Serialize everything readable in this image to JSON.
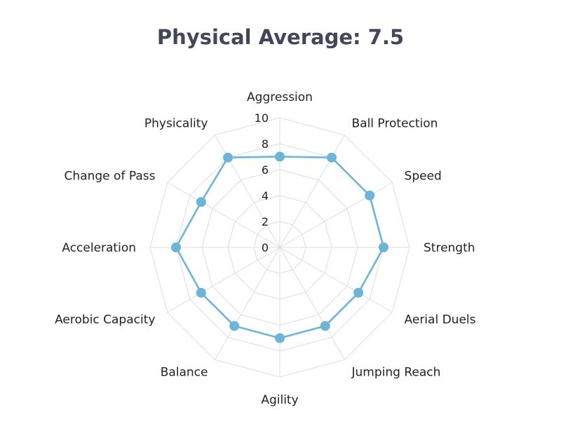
{
  "chart_data": {
    "type": "radar",
    "title": "Physical Average: 7.5",
    "categories": [
      "Aggression",
      "Ball Protection",
      "Speed",
      "Strength",
      "Aerial Duels",
      "Jumping Reach",
      "Agility",
      "Balance",
      "Aerobic Capacity",
      "Acceleration",
      "Change of Pass",
      "Physicality"
    ],
    "series": [
      {
        "values": [
          7,
          8,
          8,
          8,
          7,
          7,
          7,
          7,
          7,
          8,
          7,
          8
        ]
      }
    ],
    "r_range": [
      0,
      10
    ],
    "r_ticks": [
      "0",
      "2",
      "4",
      "6",
      "8",
      "10"
    ],
    "grid": true,
    "legend": "none",
    "colors": {
      "series": "#6CB4D8",
      "grid": "#DDDDDD",
      "title": "#434658",
      "text": "#222222"
    }
  }
}
